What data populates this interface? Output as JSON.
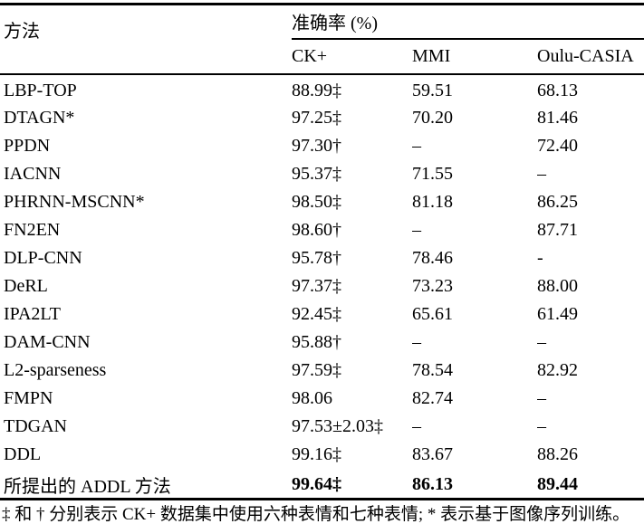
{
  "table": {
    "col1_header": "方法",
    "group_header": "准确率 (%)",
    "sub_headers": {
      "ck": "CK+",
      "mmi": "MMI",
      "oulu": "Oulu-CASIA"
    },
    "rows": [
      {
        "method": "LBP-TOP",
        "ck": "88.99‡",
        "mmi": "59.51",
        "oulu": "68.13"
      },
      {
        "method": "DTAGN*",
        "ck": "97.25‡",
        "mmi": "70.20",
        "oulu": "81.46"
      },
      {
        "method": "PPDN",
        "ck": "97.30†",
        "mmi": "–",
        "oulu": "72.40"
      },
      {
        "method": "IACNN",
        "ck": "95.37‡",
        "mmi": "71.55",
        "oulu": "–"
      },
      {
        "method": "PHRNN-MSCNN*",
        "ck": "98.50‡",
        "mmi": "81.18",
        "oulu": "86.25"
      },
      {
        "method": "FN2EN",
        "ck": "98.60†",
        "mmi": "–",
        "oulu": "87.71"
      },
      {
        "method": "DLP-CNN",
        "ck": "95.78†",
        "mmi": "78.46",
        "oulu": "-"
      },
      {
        "method": "DeRL",
        "ck": "97.37‡",
        "mmi": "73.23",
        "oulu": "88.00"
      },
      {
        "method": "IPA2LT",
        "ck": "92.45‡",
        "mmi": "65.61",
        "oulu": "61.49"
      },
      {
        "method": "DAM-CNN",
        "ck": "95.88†",
        "mmi": "–",
        "oulu": "–"
      },
      {
        "method": "L2-sparseness",
        "ck": "97.59‡",
        "mmi": "78.54",
        "oulu": "82.92"
      },
      {
        "method": "FMPN",
        "ck": "98.06",
        "mmi": "82.74",
        "oulu": "–"
      },
      {
        "method": "TDGAN",
        "ck": "97.53±2.03‡",
        "mmi": "–",
        "oulu": "–"
      },
      {
        "method": "DDL",
        "ck": "99.16‡",
        "mmi": "83.67",
        "oulu": "88.26"
      },
      {
        "method": "所提出的 ADDL 方法",
        "ck": "99.64‡",
        "mmi": "86.13",
        "oulu": "89.44"
      }
    ],
    "footnote": "‡ 和 † 分别表示 CK+ 数据集中使用六种表情和七种表情; * 表示基于图像序列训练。"
  }
}
